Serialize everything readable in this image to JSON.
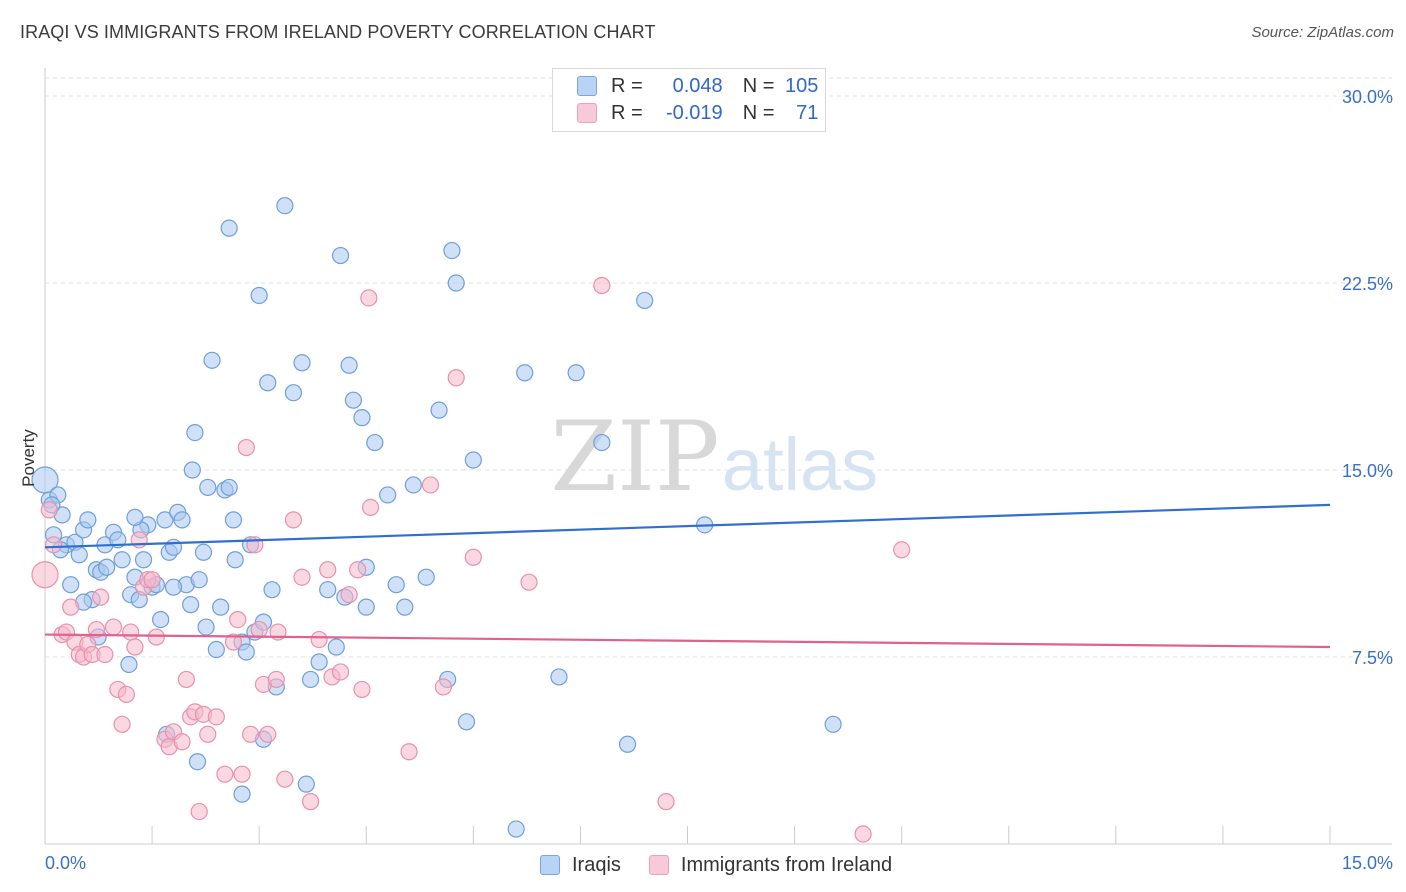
{
  "title": "IRAQI VS IMMIGRANTS FROM IRELAND POVERTY CORRELATION CHART",
  "source": "Source: ZipAtlas.com",
  "watermark": {
    "zip": "ZIP",
    "atlas": "atlas"
  },
  "legend": {
    "rows": [
      {
        "r_label": "R =",
        "r_value": "0.048",
        "n_label": "N =",
        "n_value": "105"
      },
      {
        "r_label": "R =",
        "r_value": "-0.019",
        "n_label": "N =",
        "n_value": "71"
      }
    ]
  },
  "bottom_legend": {
    "series1": "Iraqis",
    "series2": "Immigrants from Ireland"
  },
  "colors": {
    "blue_fill": "#a9c8f0",
    "blue_stroke": "#6f9fd8",
    "blue_line": "#2f6fd0",
    "pink_fill": "#f5b8cb",
    "pink_stroke": "#e890ad",
    "pink_line": "#e0608e",
    "axis_text": "#3a6fc8",
    "grid": "#e2e2e2"
  },
  "chart_data": {
    "type": "scatter",
    "title": "IRAQI VS IMMIGRANTS FROM IRELAND POVERTY CORRELATION CHART",
    "xlabel": "",
    "ylabel": "Poverty",
    "xlim": [
      0,
      15
    ],
    "ylim": [
      0,
      30
    ],
    "x_tick_labels": [
      "0.0%",
      "15.0%"
    ],
    "y_ticks": [
      7.5,
      15.0,
      22.5,
      30.0
    ],
    "y_tick_labels": [
      "7.5%",
      "15.0%",
      "22.5%",
      "30.0%"
    ],
    "series": [
      {
        "name": "Iraqis",
        "r": 0.048,
        "n": 105,
        "trend": {
          "x": [
            0,
            15
          ],
          "y": [
            11.9,
            13.6
          ]
        },
        "points": [
          [
            0.0,
            14.6
          ],
          [
            0.05,
            13.8
          ],
          [
            0.1,
            12.4
          ],
          [
            0.15,
            14.0
          ],
          [
            0.2,
            13.2
          ],
          [
            0.25,
            12.0
          ],
          [
            0.3,
            10.4
          ],
          [
            0.35,
            12.1
          ],
          [
            0.4,
            11.6
          ],
          [
            0.45,
            12.6
          ],
          [
            0.5,
            13.0
          ],
          [
            0.55,
            9.8
          ],
          [
            0.6,
            11.0
          ],
          [
            0.65,
            10.9
          ],
          [
            0.7,
            12.0
          ],
          [
            0.8,
            12.5
          ],
          [
            0.85,
            12.2
          ],
          [
            0.9,
            11.4
          ],
          [
            1.0,
            10.0
          ],
          [
            1.05,
            10.7
          ],
          [
            1.1,
            9.8
          ],
          [
            1.15,
            11.4
          ],
          [
            1.2,
            12.8
          ],
          [
            1.25,
            10.3
          ],
          [
            1.3,
            10.4
          ],
          [
            1.35,
            9.0
          ],
          [
            1.4,
            13.0
          ],
          [
            1.45,
            11.7
          ],
          [
            1.5,
            11.9
          ],
          [
            1.55,
            13.3
          ],
          [
            1.6,
            13.0
          ],
          [
            1.65,
            10.4
          ],
          [
            1.7,
            9.6
          ],
          [
            1.72,
            15.0
          ],
          [
            1.75,
            16.5
          ],
          [
            1.8,
            10.6
          ],
          [
            1.85,
            11.7
          ],
          [
            1.88,
            8.7
          ],
          [
            1.9,
            14.3
          ],
          [
            1.95,
            19.4
          ],
          [
            2.0,
            7.8
          ],
          [
            2.05,
            9.5
          ],
          [
            2.1,
            14.2
          ],
          [
            2.15,
            24.7
          ],
          [
            2.2,
            13.0
          ],
          [
            2.22,
            11.4
          ],
          [
            2.3,
            8.1
          ],
          [
            2.35,
            7.7
          ],
          [
            2.4,
            12.0
          ],
          [
            2.45,
            8.5
          ],
          [
            2.5,
            22.0
          ],
          [
            2.55,
            8.9
          ],
          [
            2.6,
            18.5
          ],
          [
            2.65,
            10.2
          ],
          [
            2.7,
            6.3
          ],
          [
            2.8,
            25.6
          ],
          [
            2.9,
            18.1
          ],
          [
            3.0,
            19.3
          ],
          [
            3.05,
            2.4
          ],
          [
            3.2,
            7.3
          ],
          [
            3.3,
            10.2
          ],
          [
            3.4,
            7.9
          ],
          [
            3.45,
            23.6
          ],
          [
            3.5,
            9.9
          ],
          [
            3.55,
            19.2
          ],
          [
            3.6,
            17.8
          ],
          [
            3.7,
            17.1
          ],
          [
            3.75,
            11.1
          ],
          [
            3.85,
            16.1
          ],
          [
            4.0,
            14.0
          ],
          [
            4.1,
            10.4
          ],
          [
            4.2,
            9.5
          ],
          [
            4.3,
            14.4
          ],
          [
            4.45,
            10.7
          ],
          [
            4.6,
            17.4
          ],
          [
            4.7,
            6.6
          ],
          [
            4.75,
            23.8
          ],
          [
            4.8,
            22.5
          ],
          [
            4.92,
            4.9
          ],
          [
            5.0,
            15.4
          ],
          [
            5.5,
            0.6
          ],
          [
            5.6,
            18.9
          ],
          [
            6.0,
            6.7
          ],
          [
            6.2,
            18.9
          ],
          [
            6.5,
            16.1
          ],
          [
            6.8,
            4.0
          ],
          [
            7.0,
            21.8
          ],
          [
            7.7,
            12.8
          ],
          [
            9.2,
            4.8
          ],
          [
            0.08,
            13.6
          ],
          [
            0.18,
            11.8
          ],
          [
            0.62,
            8.3
          ],
          [
            0.98,
            7.2
          ],
          [
            1.42,
            4.4
          ],
          [
            1.78,
            3.3
          ],
          [
            2.3,
            2.0
          ],
          [
            2.55,
            4.2
          ],
          [
            3.1,
            6.6
          ],
          [
            1.12,
            12.6
          ],
          [
            0.45,
            9.7
          ],
          [
            2.15,
            14.3
          ],
          [
            1.5,
            10.3
          ],
          [
            0.72,
            11.1
          ],
          [
            1.05,
            13.1
          ],
          [
            3.75,
            9.5
          ]
        ]
      },
      {
        "name": "Immigrants from Ireland",
        "r": -0.019,
        "n": 71,
        "trend": {
          "x": [
            0,
            15
          ],
          "y": [
            8.4,
            7.9
          ]
        },
        "points": [
          [
            0.0,
            10.8
          ],
          [
            0.05,
            13.4
          ],
          [
            0.1,
            12.0
          ],
          [
            0.2,
            8.4
          ],
          [
            0.25,
            8.5
          ],
          [
            0.3,
            9.5
          ],
          [
            0.35,
            8.1
          ],
          [
            0.4,
            7.6
          ],
          [
            0.45,
            7.5
          ],
          [
            0.5,
            8.0
          ],
          [
            0.55,
            7.6
          ],
          [
            0.6,
            8.6
          ],
          [
            0.65,
            9.9
          ],
          [
            0.7,
            7.6
          ],
          [
            0.8,
            8.7
          ],
          [
            0.85,
            6.2
          ],
          [
            0.9,
            4.8
          ],
          [
            0.95,
            6.0
          ],
          [
            1.0,
            8.5
          ],
          [
            1.05,
            7.9
          ],
          [
            1.1,
            12.2
          ],
          [
            1.15,
            10.3
          ],
          [
            1.2,
            10.6
          ],
          [
            1.25,
            10.6
          ],
          [
            1.3,
            8.3
          ],
          [
            1.4,
            4.2
          ],
          [
            1.45,
            3.9
          ],
          [
            1.5,
            4.5
          ],
          [
            1.6,
            4.1
          ],
          [
            1.65,
            6.6
          ],
          [
            1.7,
            5.1
          ],
          [
            1.75,
            5.3
          ],
          [
            1.8,
            1.3
          ],
          [
            1.85,
            5.2
          ],
          [
            1.9,
            4.4
          ],
          [
            2.0,
            5.1
          ],
          [
            2.1,
            2.8
          ],
          [
            2.2,
            8.1
          ],
          [
            2.25,
            9.0
          ],
          [
            2.3,
            2.8
          ],
          [
            2.35,
            15.9
          ],
          [
            2.4,
            4.4
          ],
          [
            2.45,
            12.0
          ],
          [
            2.5,
            8.6
          ],
          [
            2.55,
            6.4
          ],
          [
            2.6,
            4.4
          ],
          [
            2.7,
            6.6
          ],
          [
            2.72,
            8.5
          ],
          [
            2.8,
            2.6
          ],
          [
            2.9,
            13.0
          ],
          [
            3.0,
            10.7
          ],
          [
            3.1,
            1.7
          ],
          [
            3.2,
            8.2
          ],
          [
            3.3,
            11.0
          ],
          [
            3.35,
            6.7
          ],
          [
            3.45,
            6.9
          ],
          [
            3.55,
            10.0
          ],
          [
            3.65,
            11.0
          ],
          [
            3.7,
            6.2
          ],
          [
            3.8,
            13.5
          ],
          [
            4.25,
            3.7
          ],
          [
            4.5,
            14.4
          ],
          [
            4.65,
            6.3
          ],
          [
            4.8,
            18.7
          ],
          [
            5.0,
            11.5
          ],
          [
            5.65,
            10.5
          ],
          [
            6.5,
            22.4
          ],
          [
            7.25,
            1.7
          ],
          [
            9.55,
            0.4
          ],
          [
            10.0,
            11.8
          ],
          [
            3.78,
            21.9
          ]
        ]
      }
    ]
  }
}
